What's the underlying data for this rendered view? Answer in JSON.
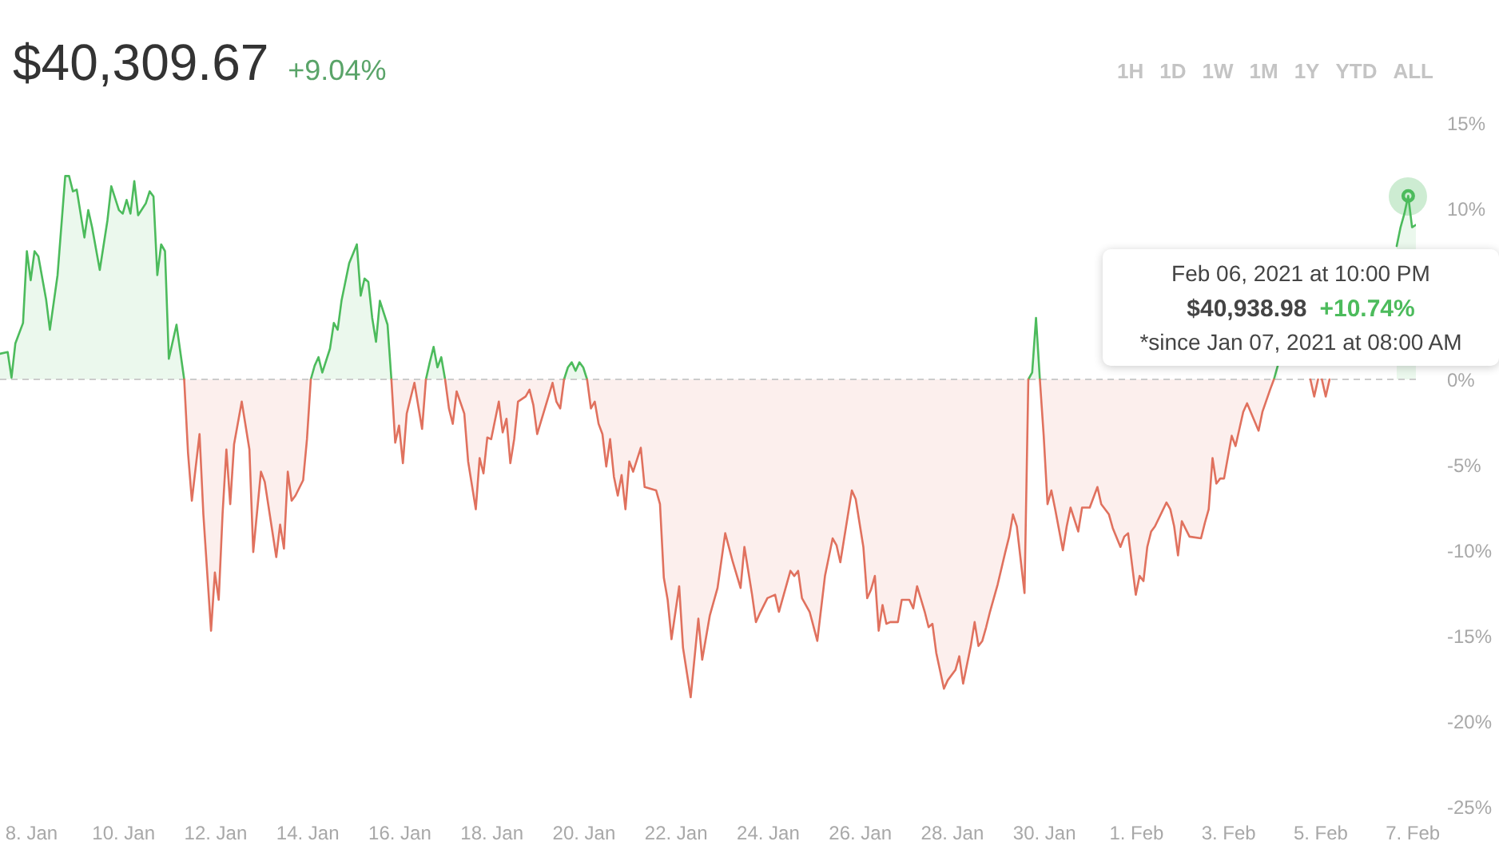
{
  "chart_data": {
    "type": "area",
    "title": "$40,309.67",
    "subtitle": "+9.04%",
    "x": [
      "2021-01-07T08:00",
      "2021-01-07T12:00",
      "2021-01-07T14:00",
      "2021-01-07T16:00",
      "2021-01-07T20:00",
      "2021-01-07T22:00",
      "2021-01-08T00:00",
      "2021-01-08T02:00",
      "2021-01-08T04:00",
      "2021-01-08T08:00",
      "2021-01-08T10:00",
      "2021-01-08T14:00",
      "2021-01-08T18:00",
      "2021-01-08T20:00",
      "2021-01-08T22:00",
      "2021-01-09T00:00",
      "2021-01-09T04:00",
      "2021-01-09T06:00",
      "2021-01-09T08:00",
      "2021-01-09T12:00",
      "2021-01-09T16:00",
      "2021-01-09T18:00",
      "2021-01-09T22:00",
      "2021-01-10T00:00",
      "2021-01-10T02:00",
      "2021-01-10T04:00",
      "2021-01-10T06:00",
      "2021-01-10T08:00",
      "2021-01-10T12:00",
      "2021-01-10T14:00",
      "2021-01-10T16:00",
      "2021-01-10T18:00",
      "2021-01-10T20:00",
      "2021-01-10T22:00",
      "2021-01-11T00:00",
      "2021-01-11T04:00",
      "2021-01-11T08:00",
      "2021-01-11T10:00",
      "2021-01-11T12:00",
      "2021-01-11T16:00",
      "2021-01-11T18:00",
      "2021-01-11T22:00",
      "2021-01-12T00:00",
      "2021-01-12T02:00",
      "2021-01-12T04:00",
      "2021-01-12T06:00",
      "2021-01-12T08:00",
      "2021-01-12T10:00",
      "2021-01-12T14:00",
      "2021-01-12T18:00",
      "2021-01-12T20:00",
      "2021-01-13T00:00",
      "2021-01-13T02:00",
      "2021-01-13T08:00",
      "2021-01-13T10:00",
      "2021-01-13T12:00",
      "2021-01-13T14:00",
      "2021-01-13T16:00",
      "2021-01-13T18:00",
      "2021-01-13T22:00",
      "2021-01-14T00:00",
      "2021-01-14T02:00",
      "2021-01-14T04:00",
      "2021-01-14T06:00",
      "2021-01-14T08:00",
      "2021-01-14T12:00",
      "2021-01-14T14:00",
      "2021-01-14T16:00",
      "2021-01-14T18:00",
      "2021-01-14T22:00",
      "2021-01-15T02:00",
      "2021-01-15T04:00",
      "2021-01-15T06:00",
      "2021-01-15T08:00",
      "2021-01-15T10:00",
      "2021-01-15T12:00",
      "2021-01-15T14:00",
      "2021-01-15T18:00",
      "2021-01-15T20:00",
      "2021-01-15T22:00",
      "2021-01-16T00:00",
      "2021-01-16T02:00",
      "2021-01-16T04:00",
      "2021-01-16T08:00",
      "2021-01-16T12:00",
      "2021-01-16T14:00",
      "2021-01-16T16:00",
      "2021-01-16T18:00",
      "2021-01-16T20:00",
      "2021-01-16T22:00",
      "2021-01-17T00:00",
      "2021-01-17T02:00",
      "2021-01-17T04:00",
      "2021-01-17T06:00",
      "2021-01-17T10:00",
      "2021-01-17T12:00",
      "2021-01-17T16:00",
      "2021-01-17T18:00",
      "2021-01-17T20:00",
      "2021-01-17T22:00",
      "2021-01-18T00:00",
      "2021-01-18T04:00",
      "2021-01-18T06:00",
      "2021-01-18T08:00",
      "2021-01-18T10:00",
      "2021-01-18T12:00",
      "2021-01-18T14:00",
      "2021-01-18T18:00",
      "2021-01-18T20:00",
      "2021-01-18T22:00",
      "2021-01-19T00:00",
      "2021-01-19T04:00",
      "2021-01-19T08:00",
      "2021-01-19T10:00",
      "2021-01-19T12:00",
      "2021-01-19T14:00",
      "2021-01-19T16:00",
      "2021-01-19T18:00",
      "2021-01-19T20:00",
      "2021-01-19T22:00",
      "2021-01-20T00:00",
      "2021-01-20T02:00",
      "2021-01-20T04:00",
      "2021-01-20T06:00",
      "2021-01-20T08:00",
      "2021-01-20T10:00",
      "2021-01-20T12:00",
      "2021-01-20T14:00",
      "2021-01-20T16:00",
      "2021-01-20T18:00",
      "2021-01-20T20:00",
      "2021-01-20T22:00",
      "2021-01-21T00:00",
      "2021-01-21T02:00",
      "2021-01-21T06:00",
      "2021-01-21T08:00",
      "2021-01-21T14:00",
      "2021-01-21T16:00",
      "2021-01-21T18:00",
      "2021-01-21T20:00",
      "2021-01-21T22:00",
      "2021-01-22T02:00",
      "2021-01-22T04:00",
      "2021-01-22T08:00",
      "2021-01-22T12:00",
      "2021-01-22T14:00",
      "2021-01-22T18:00",
      "2021-01-22T22:00",
      "2021-01-23T02:00",
      "2021-01-23T06:00",
      "2021-01-23T10:00",
      "2021-01-23T12:00",
      "2021-01-23T16:00",
      "2021-01-23T18:00",
      "2021-01-23T20:00",
      "2021-01-24T00:00",
      "2021-01-24T04:00",
      "2021-01-24T06:00",
      "2021-01-24T12:00",
      "2021-01-24T14:00",
      "2021-01-24T16:00",
      "2021-01-24T18:00",
      "2021-01-24T22:00",
      "2021-01-25T02:00",
      "2021-01-25T06:00",
      "2021-01-25T10:00",
      "2021-01-25T12:00",
      "2021-01-25T14:00",
      "2021-01-25T20:00",
      "2021-01-25T22:00",
      "2021-01-26T02:00",
      "2021-01-26T04:00",
      "2021-01-26T06:00",
      "2021-01-26T08:00",
      "2021-01-26T10:00",
      "2021-01-26T12:00",
      "2021-01-26T14:00",
      "2021-01-26T16:00",
      "2021-01-26T20:00",
      "2021-01-26T22:00",
      "2021-01-27T02:00",
      "2021-01-27T04:00",
      "2021-01-27T06:00",
      "2021-01-27T10:00",
      "2021-01-27T12:00",
      "2021-01-27T14:00",
      "2021-01-27T16:00",
      "2021-01-27T20:00",
      "2021-01-27T22:00",
      "2021-01-28T02:00",
      "2021-01-28T04:00",
      "2021-01-28T06:00",
      "2021-01-28T10:00",
      "2021-01-28T12:00",
      "2021-01-28T14:00",
      "2021-01-28T16:00",
      "2021-01-28T18:00",
      "2021-01-28T20:00",
      "2021-01-29T00:00",
      "2021-01-29T04:00",
      "2021-01-29T06:00",
      "2021-01-29T08:00",
      "2021-01-29T10:00",
      "2021-01-29T14:00",
      "2021-01-29T16:00",
      "2021-01-29T18:00",
      "2021-01-29T20:00",
      "2021-01-29T22:00",
      "2021-01-30T00:00",
      "2021-01-30T02:00",
      "2021-01-30T04:00",
      "2021-01-30T06:00",
      "2021-01-30T10:00",
      "2021-01-30T12:00",
      "2021-01-30T14:00",
      "2021-01-30T18:00",
      "2021-01-30T20:00",
      "2021-01-31T00:00",
      "2021-01-31T04:00",
      "2021-01-31T06:00",
      "2021-01-31T10:00",
      "2021-01-31T12:00",
      "2021-01-31T16:00",
      "2021-01-31T18:00",
      "2021-01-31T20:00",
      "2021-02-01T00:00",
      "2021-02-01T02:00",
      "2021-02-01T04:00",
      "2021-02-01T06:00",
      "2021-02-01T08:00",
      "2021-02-01T10:00",
      "2021-02-01T16:00",
      "2021-02-01T18:00",
      "2021-02-01T20:00",
      "2021-02-01T22:00",
      "2021-02-02T00:00",
      "2021-02-02T04:00",
      "2021-02-02T10:00",
      "2021-02-02T12:00",
      "2021-02-02T14:00",
      "2021-02-02T16:00",
      "2021-02-02T18:00",
      "2021-02-02T20:00",
      "2021-02-02T22:00",
      "2021-02-03T02:00",
      "2021-02-03T04:00",
      "2021-02-03T08:00",
      "2021-02-03T10:00",
      "2021-02-03T16:00",
      "2021-02-03T18:00",
      "2021-02-03T22:00",
      "2021-02-04T00:00",
      "2021-02-04T02:00",
      "2021-02-04T10:00",
      "2021-02-04T19:00",
      "2021-02-04T21:00",
      "2021-02-04T23:00",
      "2021-02-05T00:00",
      "2021-02-05T01:00",
      "2021-02-05T03:00",
      "2021-02-05T05:00",
      "2021-02-06T00:00",
      "2021-02-06T16:00",
      "2021-02-06T18:00",
      "2021-02-06T20:00",
      "2021-02-06T22:00",
      "2021-02-07T00:00",
      "2021-02-07T02:00"
    ],
    "series": [
      {
        "color": "#4cbb5c",
        "values": [
          1.5,
          1.6,
          0.1,
          2.1,
          3.3,
          7.5,
          5.8,
          7.5,
          7.2,
          4.7,
          2.9,
          6.1,
          11.9,
          11.9,
          11.0,
          11.1,
          8.3,
          9.9,
          8.9,
          6.4,
          9.3,
          11.3,
          9.9,
          9.7,
          10.5,
          9.7,
          11.6,
          9.6,
          10.3,
          11.0,
          10.7,
          6.1,
          7.9,
          7.5,
          1.2,
          3.2,
          0,
          null,
          null,
          null,
          null,
          null,
          null,
          null,
          null,
          null,
          null,
          null,
          null,
          null,
          null,
          null,
          null,
          null,
          null,
          null,
          null,
          null,
          null,
          null,
          null,
          0,
          0.8,
          1.3,
          0.4,
          1.8,
          3.3,
          2.9,
          4.6,
          6.8,
          7.9,
          4.9,
          5.9,
          5.7,
          3.6,
          2.2,
          4.6,
          3.2,
          0,
          null,
          null,
          null,
          null,
          null,
          null,
          0,
          1.0,
          1.9,
          0.7,
          1.3,
          0,
          null,
          null,
          null,
          null,
          null,
          null,
          null,
          null,
          null,
          null,
          null,
          null,
          null,
          null,
          null,
          null,
          null,
          null,
          null,
          null,
          null,
          null,
          null,
          null,
          0,
          0.7,
          1.0,
          0.5,
          1.0,
          0.7,
          0,
          null,
          null,
          null,
          null,
          null,
          null,
          null,
          null,
          null,
          null,
          null,
          null,
          null,
          null,
          null,
          null,
          null,
          null,
          null,
          null,
          null,
          null,
          null,
          null,
          null,
          null,
          null,
          null,
          null,
          null,
          null,
          null,
          null,
          null,
          null,
          null,
          null,
          null,
          null,
          null,
          null,
          null,
          null,
          null,
          null,
          null,
          null,
          null,
          null,
          null,
          null,
          null,
          null,
          null,
          null,
          null,
          null,
          null,
          null,
          null,
          null,
          null,
          null,
          null,
          null,
          null,
          null,
          null,
          null,
          null,
          null,
          null,
          null,
          null,
          null,
          null,
          null,
          null,
          null,
          null,
          null,
          null,
          0,
          0.4,
          3.6,
          0,
          null,
          null,
          null,
          null,
          null,
          null,
          null,
          null,
          null,
          null,
          null,
          null,
          null,
          null,
          null,
          null,
          null,
          null,
          null,
          null,
          null,
          null,
          null,
          null,
          null,
          null,
          null,
          null,
          null,
          null,
          null,
          null,
          null,
          null,
          null,
          null,
          null,
          null,
          null,
          null,
          null,
          null,
          null,
          0,
          0.8,
          null,
          null,
          null,
          null,
          null,
          null,
          null,
          null,
          null,
          7.8,
          8.9,
          9.7,
          10.74,
          8.9,
          9.04
        ]
      },
      {
        "color": "#e0715e",
        "values": [
          null,
          null,
          null,
          null,
          null,
          null,
          null,
          null,
          null,
          null,
          null,
          null,
          null,
          null,
          null,
          null,
          null,
          null,
          null,
          null,
          null,
          null,
          null,
          null,
          null,
          null,
          null,
          null,
          null,
          null,
          null,
          null,
          null,
          null,
          null,
          null,
          0,
          -4.3,
          -7.1,
          -3.2,
          -7.9,
          -14.7,
          -11.3,
          -12.9,
          -7.9,
          -4.1,
          -7.3,
          -3.8,
          -1.3,
          -4.1,
          -10.1,
          -5.4,
          -6.0,
          -10.4,
          -8.5,
          -9.9,
          -5.4,
          -7.1,
          -6.8,
          -5.9,
          -3.5,
          0,
          null,
          null,
          null,
          null,
          null,
          null,
          null,
          null,
          null,
          null,
          null,
          null,
          null,
          null,
          null,
          null,
          0,
          -3.7,
          -2.7,
          -4.9,
          -2.0,
          -0.2,
          -2.9,
          0,
          null,
          null,
          null,
          null,
          0,
          -1.7,
          -2.6,
          -0.7,
          -2.0,
          -4.8,
          -7.6,
          -4.6,
          -5.5,
          -3.4,
          -3.5,
          -1.3,
          -3.1,
          -2.3,
          -4.9,
          -3.5,
          -1.3,
          -1.0,
          -0.6,
          -1.5,
          -3.2,
          -1.7,
          -0.2,
          -1.3,
          -1.7,
          0,
          null,
          null,
          null,
          null,
          null,
          0,
          -1.7,
          -1.3,
          -2.6,
          -3.2,
          -5.1,
          -3.5,
          -5.7,
          -6.8,
          -5.6,
          -7.6,
          -4.8,
          -5.4,
          -4.0,
          -6.3,
          -6.5,
          -7.3,
          -11.6,
          -12.9,
          -15.2,
          -12.1,
          -15.7,
          -18.6,
          -14.0,
          -16.4,
          -13.8,
          -12.2,
          -9.0,
          -10.7,
          -12.2,
          -9.8,
          -12.6,
          -14.2,
          -13.7,
          -12.8,
          -12.6,
          -13.6,
          -11.2,
          -11.5,
          -11.2,
          -12.8,
          -13.6,
          -15.3,
          -11.5,
          -9.3,
          -9.7,
          -10.7,
          -6.5,
          -7.0,
          -9.8,
          -12.8,
          -12.3,
          -11.5,
          -14.7,
          -13.2,
          -14.3,
          -14.2,
          -14.2,
          -12.9,
          -12.9,
          -13.4,
          -12.1,
          -13.6,
          -14.5,
          -14.3,
          -16.0,
          -18.1,
          -17.6,
          -17.0,
          -16.2,
          -17.8,
          -15.6,
          -14.2,
          -15.6,
          -15.3,
          -14.5,
          -13.6,
          -12.0,
          -10.1,
          -9.2,
          -7.9,
          -8.6,
          -12.5,
          0,
          null,
          null,
          0,
          -3.3,
          -7.3,
          -6.5,
          -7.6,
          -10.0,
          -8.6,
          -7.5,
          -8.9,
          -7.5,
          -7.5,
          -6.3,
          -7.3,
          -7.9,
          -8.7,
          -9.8,
          -9.2,
          -9.0,
          -12.6,
          -11.5,
          -11.8,
          -9.8,
          -8.9,
          -8.6,
          -7.2,
          -7.6,
          -8.6,
          -10.3,
          -8.3,
          -9.2,
          -9.3,
          -8.4,
          -7.6,
          -4.6,
          -6.1,
          -5.8,
          -5.8,
          -3.3,
          -3.9,
          -1.9,
          -1.4,
          -3.0,
          -1.9,
          -0.6,
          0,
          null,
          null,
          0,
          -1.0,
          0,
          null,
          0,
          -1.0,
          0,
          null,
          null,
          null,
          null,
          null,
          null,
          null
        ]
      }
    ],
    "xlim": [
      "2021-01-07T08:00",
      "2021-02-07T02:00"
    ],
    "xticks": [
      {
        "value": "2021-01-08",
        "label": "8. Jan"
      },
      {
        "value": "2021-01-10",
        "label": "10. Jan"
      },
      {
        "value": "2021-01-12",
        "label": "12. Jan"
      },
      {
        "value": "2021-01-14",
        "label": "14. Jan"
      },
      {
        "value": "2021-01-16",
        "label": "16. Jan"
      },
      {
        "value": "2021-01-18",
        "label": "18. Jan"
      },
      {
        "value": "2021-01-20",
        "label": "20. Jan"
      },
      {
        "value": "2021-01-22",
        "label": "22. Jan"
      },
      {
        "value": "2021-01-24",
        "label": "24. Jan"
      },
      {
        "value": "2021-01-26",
        "label": "26. Jan"
      },
      {
        "value": "2021-01-28",
        "label": "28. Jan"
      },
      {
        "value": "2021-01-30",
        "label": "30. Jan"
      },
      {
        "value": "2021-02-01",
        "label": "1. Feb"
      },
      {
        "value": "2021-02-03",
        "label": "3. Feb"
      },
      {
        "value": "2021-02-05",
        "label": "5. Feb"
      },
      {
        "value": "2021-02-07",
        "label": "7. Feb"
      }
    ],
    "ylim": [
      -25,
      15
    ],
    "yticks": [
      {
        "value": 15,
        "label": "15%"
      },
      {
        "value": 10,
        "label": "10%"
      },
      {
        "value": 0,
        "label": "0%"
      },
      {
        "value": -5,
        "label": "-5%"
      },
      {
        "value": -10,
        "label": "-10%"
      },
      {
        "value": -15,
        "label": "-15%"
      },
      {
        "value": -20,
        "label": "-20%"
      },
      {
        "value": -25,
        "label": "-25%"
      }
    ],
    "ref_lines": [
      {
        "axis": "y",
        "value": 0,
        "color": "#cccccc",
        "line_style": "dashed"
      }
    ],
    "annotations": [
      {
        "text": "Feb 06, 2021 at 10:00 PM\n$40,938.98 +10.74%\n*since Jan 07, 2021 at 08:00 AM",
        "x": "2021-02-06T22:00",
        "y": 10.74
      },
      "1H",
      "1D",
      "1W",
      "1M",
      "1Y",
      "YTD",
      "ALL"
    ]
  }
}
